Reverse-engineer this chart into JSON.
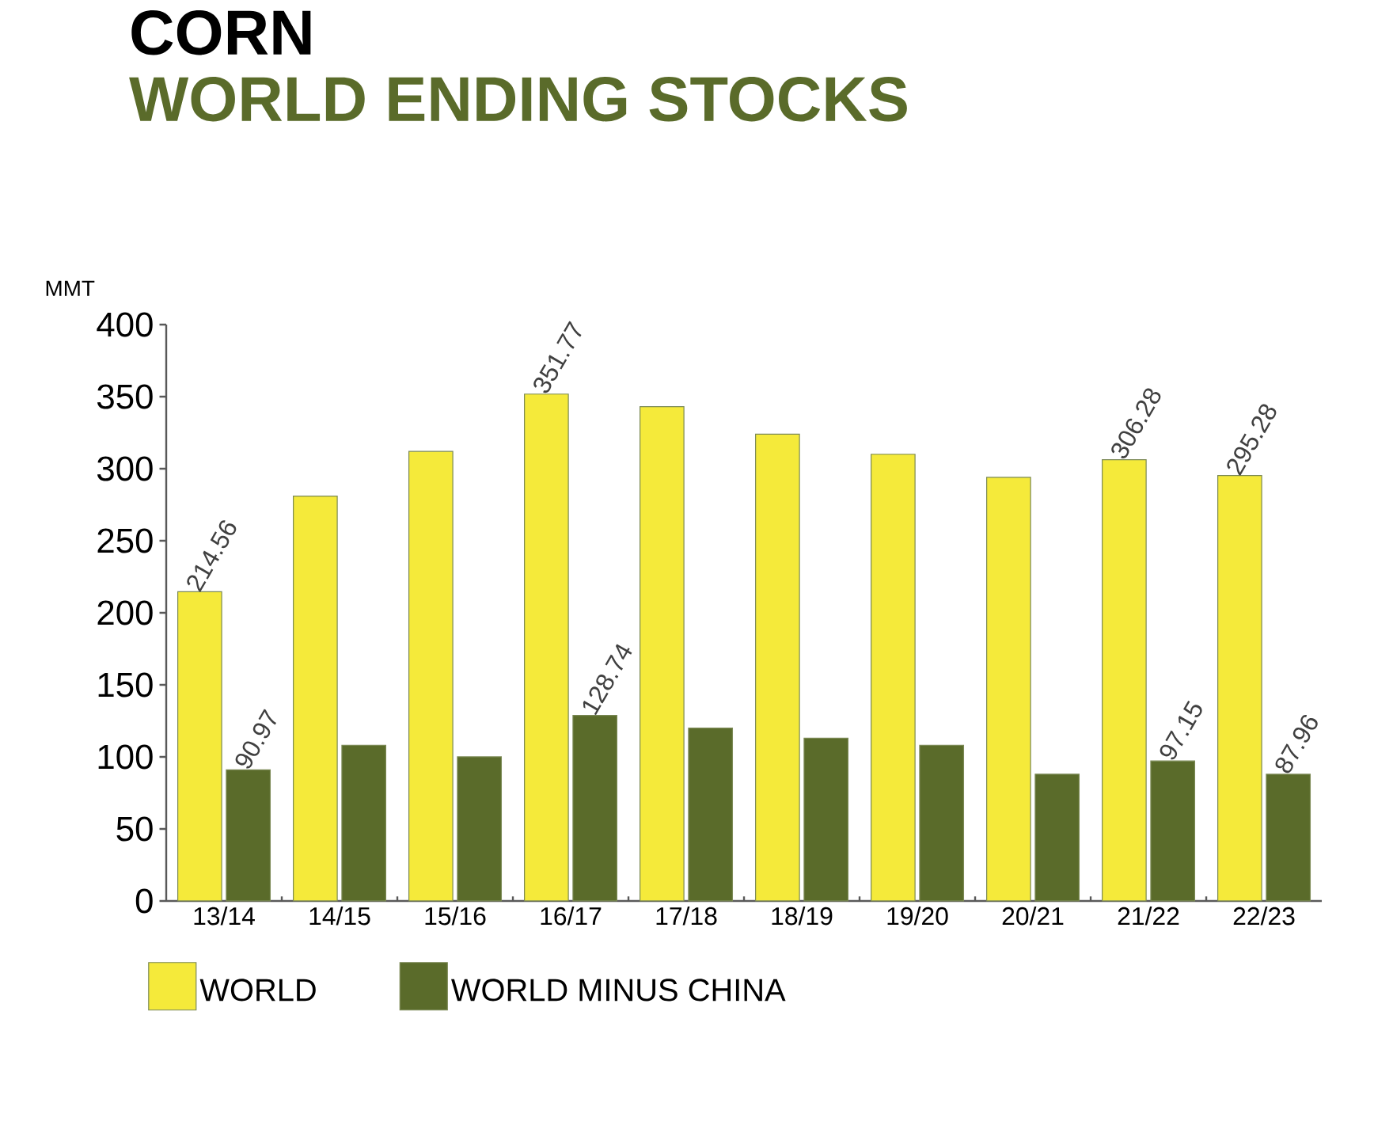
{
  "chart_data": {
    "type": "bar",
    "title": "CORN",
    "subtitle": "WORLD ENDING STOCKS",
    "ylabel": "MMT",
    "categories": [
      "13/14",
      "14/15",
      "15/16",
      "16/17",
      "17/18",
      "18/19",
      "19/20",
      "20/21",
      "21/22",
      "22/23"
    ],
    "series": [
      {
        "name": "WORLD",
        "color": "#f5ea3a",
        "values": [
          214.56,
          281,
          312,
          351.77,
          343,
          324,
          310,
          294,
          306.28,
          295.28
        ],
        "value_labels": [
          "214.56",
          null,
          null,
          "351.77",
          null,
          null,
          null,
          null,
          "306.28",
          "295.28"
        ]
      },
      {
        "name": "WORLD MINUS CHINA",
        "color": "#5a6b2a",
        "values": [
          90.97,
          108,
          100,
          128.74,
          120,
          113,
          108,
          88,
          97.15,
          87.96
        ],
        "value_labels": [
          "90.97",
          null,
          null,
          "128.74",
          null,
          null,
          null,
          null,
          "97.15",
          "87.96"
        ]
      }
    ],
    "ylim": [
      0,
      400
    ],
    "yticks": [
      0,
      50,
      100,
      150,
      200,
      250,
      300,
      350,
      400
    ],
    "grid": false,
    "legend": "bottom"
  }
}
